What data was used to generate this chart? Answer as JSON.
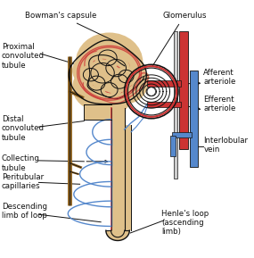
{
  "bg_color": "#ffffff",
  "tubule_fill": "#dfc08a",
  "tubule_edge": "#8b6020",
  "red_color": "#cc3333",
  "blue_color": "#5588cc",
  "dark_color": "#111111",
  "label_fontsize": 6.2,
  "labels": {
    "bowmans": "Bowman's capsule",
    "glomerulus": "Glomerulus",
    "proximal": "Proximal\nconvoluted\ntubule",
    "distal": "Distal\nconvoluted\ntubule",
    "collecting": "Collecting\ntubule",
    "peritubular": "Peritubular\ncapillaries",
    "descending": "Descending\nlimb of loop",
    "afferent": "Afferent\narteriole",
    "efferent": "Efferent\narteriole",
    "interlobular": "Interlobular\nvein",
    "henles": "Henle's loop\n(ascending\nlimb)"
  }
}
